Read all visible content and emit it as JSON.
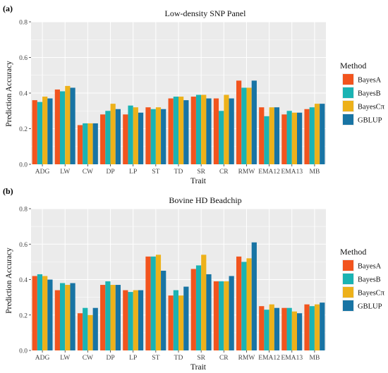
{
  "colors": {
    "BayesA": "#F2541E",
    "BayesB": "#1AB3B3",
    "BayesCpi": "#EDB11A",
    "GBLUP": "#1874A4",
    "panel_bg": "#EBEBEB",
    "grid": "#FFFFFF"
  },
  "chart_data": [
    {
      "type": "bar",
      "panel_label": "(a)",
      "title": "Low-density SNP Panel",
      "xlabel": "Trait",
      "ylabel": "Prediction Accuracy",
      "ylim": [
        0,
        0.8
      ],
      "yticks": [
        "0.0",
        "0.2",
        "0.4",
        "0.6",
        "0.8"
      ],
      "grid": true,
      "legend": {
        "title": "Method",
        "position": "right"
      },
      "categories": [
        "ADG",
        "LW",
        "CW",
        "DP",
        "LP",
        "ST",
        "TD",
        "SR",
        "CR",
        "RMW",
        "EMA12",
        "EMA13",
        "MB"
      ],
      "series": [
        {
          "name": "BayesA",
          "values": [
            0.36,
            0.42,
            0.22,
            0.28,
            0.28,
            0.32,
            0.37,
            0.38,
            0.37,
            0.47,
            0.32,
            0.28,
            0.31
          ]
        },
        {
          "name": "BayesB",
          "values": [
            0.35,
            0.41,
            0.23,
            0.3,
            0.33,
            0.31,
            0.38,
            0.39,
            0.3,
            0.43,
            0.27,
            0.3,
            0.32
          ]
        },
        {
          "name": "BayesCπ",
          "values": [
            0.38,
            0.44,
            0.23,
            0.34,
            0.32,
            0.32,
            0.38,
            0.39,
            0.39,
            0.43,
            0.32,
            0.29,
            0.34
          ]
        },
        {
          "name": "GBLUP",
          "values": [
            0.37,
            0.43,
            0.23,
            0.31,
            0.29,
            0.31,
            0.36,
            0.37,
            0.37,
            0.47,
            0.32,
            0.29,
            0.34
          ]
        }
      ]
    },
    {
      "type": "bar",
      "panel_label": "(b)",
      "title": "Bovine HD  Beadchip",
      "xlabel": "Trait",
      "ylabel": "Prediction Accuracy",
      "ylim": [
        0,
        0.8
      ],
      "yticks": [
        "0.0",
        "0.2",
        "0.4",
        "0.6",
        "0.8"
      ],
      "grid": true,
      "legend": {
        "title": "Method",
        "position": "right"
      },
      "categories": [
        "ADG",
        "LW",
        "CW",
        "DP",
        "LP",
        "ST",
        "TD",
        "SR",
        "CR",
        "RMW",
        "EMA12",
        "EMA13",
        "MB"
      ],
      "series": [
        {
          "name": "BayesA",
          "values": [
            0.42,
            0.34,
            0.21,
            0.37,
            0.34,
            0.53,
            0.31,
            0.46,
            0.39,
            0.53,
            0.25,
            0.24,
            0.26
          ]
        },
        {
          "name": "BayesB",
          "values": [
            0.43,
            0.38,
            0.24,
            0.39,
            0.33,
            0.53,
            0.34,
            0.48,
            0.39,
            0.5,
            0.23,
            0.24,
            0.25
          ]
        },
        {
          "name": "BayesCπ",
          "values": [
            0.42,
            0.37,
            0.2,
            0.37,
            0.34,
            0.54,
            0.31,
            0.54,
            0.39,
            0.52,
            0.26,
            0.22,
            0.26
          ]
        },
        {
          "name": "GBLUP",
          "values": [
            0.4,
            0.38,
            0.24,
            0.37,
            0.34,
            0.45,
            0.36,
            0.43,
            0.42,
            0.61,
            0.24,
            0.21,
            0.27
          ]
        }
      ]
    }
  ]
}
